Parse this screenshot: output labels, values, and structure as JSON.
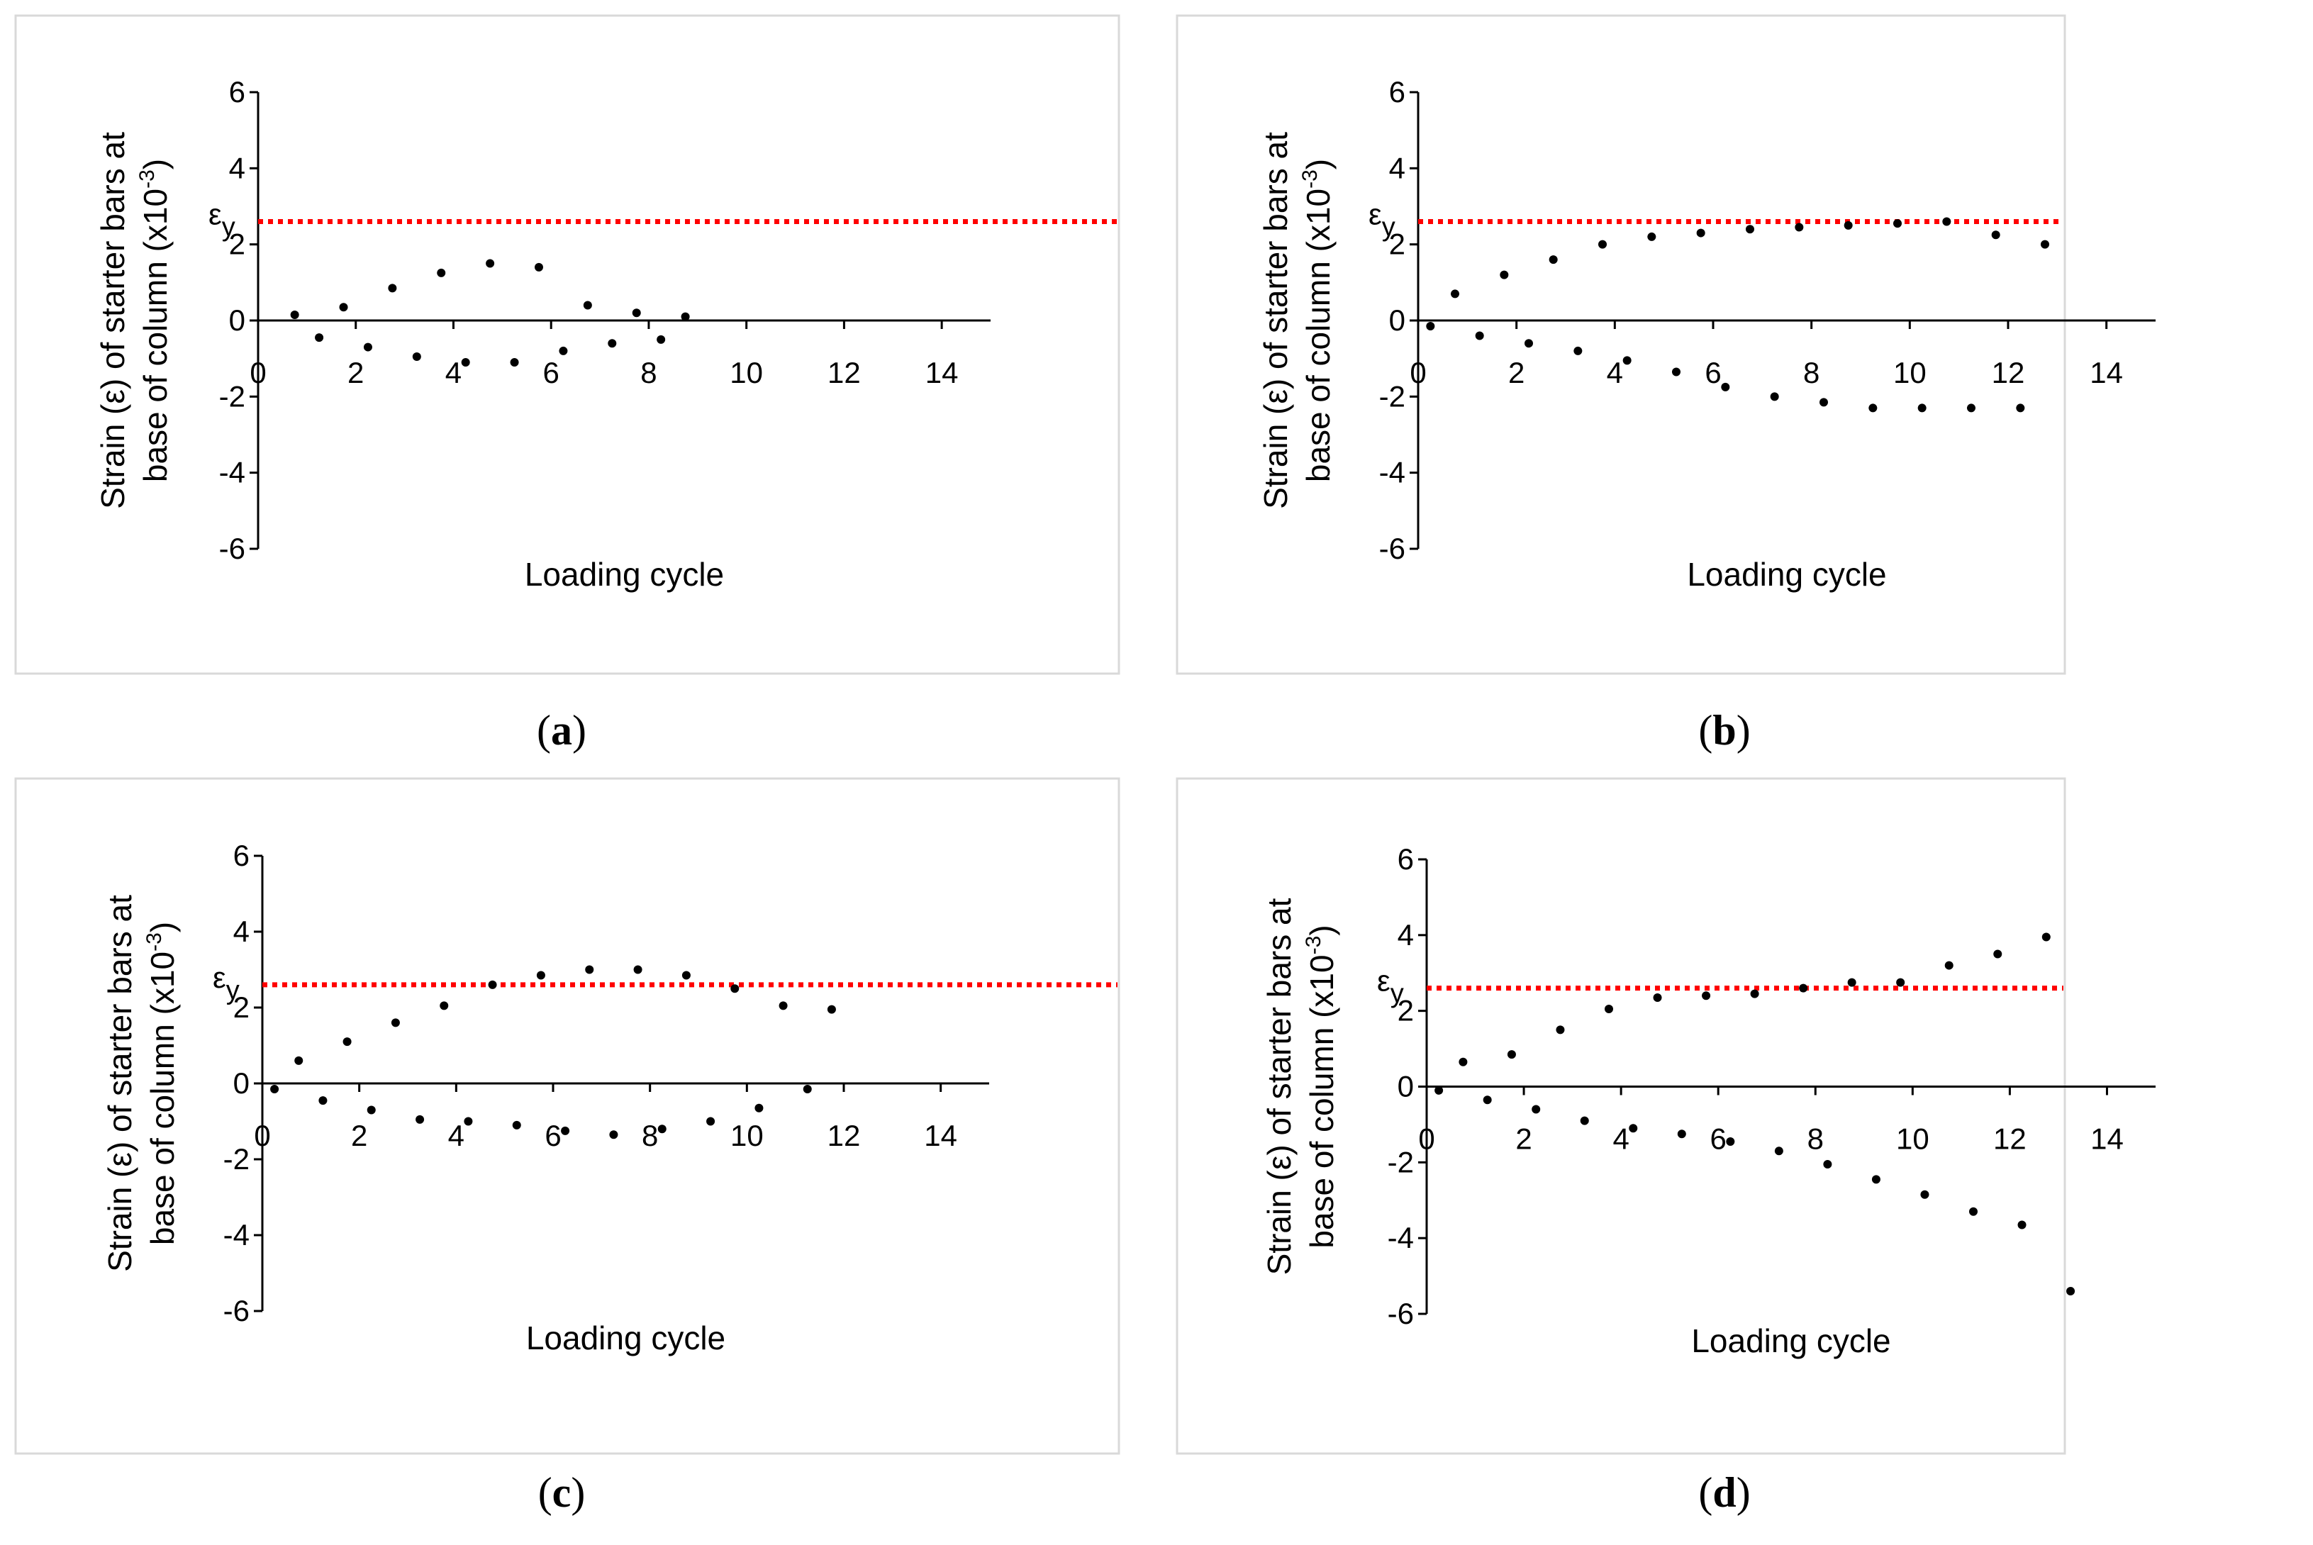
{
  "figure": {
    "captions": [
      "(a)",
      "(b)",
      "(c)",
      "(d)"
    ],
    "caption_letters": [
      "a",
      "b",
      "c",
      "d"
    ]
  },
  "colors": {
    "yield_line": "#ff0000",
    "points": "#000000",
    "axis": "#000000",
    "panel_border": "#d9d9d9"
  },
  "chart_data": [
    {
      "type": "scatter",
      "panel": "a",
      "title": "",
      "xlabel": "Loading cycle",
      "ylabel": [
        "Strain (ε) of starter bars at",
        "base of column (x10",
        "-3",
        ")"
      ],
      "xlim": [
        0,
        15
      ],
      "ylim": [
        -6,
        6
      ],
      "xticks": [
        0,
        2,
        4,
        6,
        8,
        10,
        12,
        14
      ],
      "yticks": [
        -6,
        -4,
        -2,
        0,
        2,
        4,
        6
      ],
      "yield_strain": {
        "label": "ε",
        "sub": "y",
        "value": 2.6
      },
      "points": [
        [
          0.75,
          0.15
        ],
        [
          1.25,
          -0.45
        ],
        [
          1.75,
          0.35
        ],
        [
          2.25,
          -0.7
        ],
        [
          2.75,
          0.85
        ],
        [
          3.25,
          -0.95
        ],
        [
          3.75,
          1.25
        ],
        [
          4.25,
          -1.1
        ],
        [
          4.75,
          1.5
        ],
        [
          5.25,
          -1.1
        ],
        [
          5.75,
          1.4
        ],
        [
          6.25,
          -0.8
        ],
        [
          6.75,
          0.4
        ],
        [
          7.25,
          -0.6
        ],
        [
          7.75,
          0.2
        ],
        [
          8.25,
          -0.5
        ],
        [
          8.75,
          0.1
        ]
      ]
    },
    {
      "type": "scatter",
      "panel": "b",
      "title": "",
      "xlabel": "Loading cycle",
      "ylabel": [
        "Strain (ε) of starter bars at",
        "base of column (x10",
        "-3",
        ")"
      ],
      "xlim": [
        0,
        15
      ],
      "ylim": [
        -6,
        6
      ],
      "xticks": [
        0,
        2,
        4,
        6,
        8,
        10,
        12,
        14
      ],
      "yticks": [
        -6,
        -4,
        -2,
        0,
        2,
        4,
        6
      ],
      "yield_strain": {
        "label": "ε",
        "sub": "y",
        "value": 2.6
      },
      "points": [
        [
          0.25,
          -0.15
        ],
        [
          0.75,
          0.7
        ],
        [
          1.25,
          -0.4
        ],
        [
          1.75,
          1.2
        ],
        [
          2.25,
          -0.6
        ],
        [
          2.75,
          1.6
        ],
        [
          3.25,
          -0.8
        ],
        [
          3.75,
          2.0
        ],
        [
          4.25,
          -1.05
        ],
        [
          4.75,
          2.2
        ],
        [
          5.25,
          -1.35
        ],
        [
          5.75,
          2.3
        ],
        [
          6.25,
          -1.75
        ],
        [
          6.75,
          2.4
        ],
        [
          7.25,
          -2.0
        ],
        [
          7.75,
          2.45
        ],
        [
          8.25,
          -2.15
        ],
        [
          8.75,
          2.5
        ],
        [
          9.25,
          -2.3
        ],
        [
          9.75,
          2.55
        ],
        [
          10.25,
          -2.3
        ],
        [
          10.75,
          2.6
        ],
        [
          11.25,
          -2.3
        ],
        [
          11.75,
          2.25
        ],
        [
          12.25,
          -2.3
        ],
        [
          12.75,
          2.0
        ]
      ]
    },
    {
      "type": "scatter",
      "panel": "c",
      "title": "",
      "xlabel": "Loading cycle",
      "ylabel": [
        "Strain (ε) of starter bars at",
        "base of column (x10",
        "-3",
        ")"
      ],
      "xlim": [
        0,
        15
      ],
      "ylim": [
        -6,
        6
      ],
      "xticks": [
        0,
        2,
        4,
        6,
        8,
        10,
        12,
        14
      ],
      "yticks": [
        -6,
        -4,
        -2,
        0,
        2,
        4,
        6
      ],
      "yield_strain": {
        "label": "ε",
        "sub": "y",
        "value": 2.6
      },
      "points": [
        [
          0.25,
          -0.15
        ],
        [
          0.75,
          0.6
        ],
        [
          1.25,
          -0.45
        ],
        [
          1.75,
          1.1
        ],
        [
          2.25,
          -0.7
        ],
        [
          2.75,
          1.6
        ],
        [
          3.25,
          -0.95
        ],
        [
          3.75,
          2.05
        ],
        [
          4.25,
          -1.0
        ],
        [
          4.75,
          2.6
        ],
        [
          5.25,
          -1.1
        ],
        [
          5.75,
          2.85
        ],
        [
          6.25,
          -1.25
        ],
        [
          6.75,
          3.0
        ],
        [
          7.25,
          -1.35
        ],
        [
          7.75,
          3.0
        ],
        [
          8.25,
          -1.2
        ],
        [
          8.75,
          2.85
        ],
        [
          9.25,
          -1.0
        ],
        [
          9.75,
          2.5
        ],
        [
          10.25,
          -0.65
        ],
        [
          10.75,
          2.05
        ],
        [
          11.25,
          -0.15
        ],
        [
          11.75,
          1.95
        ]
      ]
    },
    {
      "type": "scatter",
      "panel": "d",
      "title": "",
      "xlabel": "Loading cycle",
      "ylabel": [
        "Strain (ε) of starter bars at",
        "base of column (x10",
        "-3",
        ")"
      ],
      "xlim": [
        0,
        15
      ],
      "ylim": [
        -6,
        6
      ],
      "xticks": [
        0,
        2,
        4,
        6,
        8,
        10,
        12,
        14
      ],
      "yticks": [
        -6,
        -4,
        -2,
        0,
        2,
        4,
        6
      ],
      "yield_strain": {
        "label": "ε",
        "sub": "y",
        "value": 2.6
      },
      "points": [
        [
          0.25,
          -0.1
        ],
        [
          0.75,
          0.65
        ],
        [
          1.25,
          -0.35
        ],
        [
          1.75,
          0.85
        ],
        [
          2.25,
          -0.6
        ],
        [
          2.75,
          1.5
        ],
        [
          3.25,
          -0.9
        ],
        [
          3.75,
          2.05
        ],
        [
          4.25,
          -1.1
        ],
        [
          4.75,
          2.35
        ],
        [
          5.25,
          -1.25
        ],
        [
          5.75,
          2.4
        ],
        [
          6.25,
          -1.45
        ],
        [
          6.75,
          2.45
        ],
        [
          7.25,
          -1.7
        ],
        [
          7.75,
          2.6
        ],
        [
          8.25,
          -2.05
        ],
        [
          8.75,
          2.75
        ],
        [
          9.25,
          -2.45
        ],
        [
          9.75,
          2.75
        ],
        [
          10.25,
          -2.85
        ],
        [
          10.75,
          3.2
        ],
        [
          11.25,
          -3.3
        ],
        [
          11.75,
          3.5
        ],
        [
          12.25,
          -3.65
        ],
        [
          12.75,
          3.95
        ],
        [
          13.25,
          -5.4
        ]
      ]
    }
  ]
}
